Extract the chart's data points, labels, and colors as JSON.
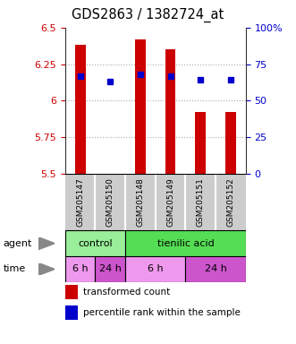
{
  "title": "GDS2863 / 1382724_at",
  "samples": [
    "GSM205147",
    "GSM205150",
    "GSM205148",
    "GSM205149",
    "GSM205151",
    "GSM205152"
  ],
  "bar_bottoms": [
    5.5,
    5.52,
    5.5,
    5.5,
    5.5,
    5.5
  ],
  "bar_tops": [
    6.38,
    5.52,
    6.42,
    6.35,
    5.92,
    5.92
  ],
  "percentile_values": [
    6.17,
    6.13,
    6.18,
    6.17,
    6.14,
    6.14
  ],
  "ylim": [
    5.5,
    6.5
  ],
  "yticks": [
    5.5,
    5.75,
    6.0,
    6.25,
    6.5
  ],
  "ytick_labels": [
    "5.5",
    "5.75",
    "6",
    "6.25",
    "6.5"
  ],
  "right_yticks": [
    0,
    25,
    50,
    75,
    100
  ],
  "right_ytick_labels": [
    "0",
    "25",
    "50",
    "75",
    "100%"
  ],
  "bar_color": "#cc0000",
  "dot_color": "#0000cc",
  "agent_groups": [
    {
      "label": "control",
      "start": 0,
      "end": 2,
      "color": "#99ee99"
    },
    {
      "label": "tienilic acid",
      "start": 2,
      "end": 6,
      "color": "#55dd55"
    }
  ],
  "time_groups": [
    {
      "label": "6 h",
      "start": 0,
      "end": 1,
      "color": "#ee99ee"
    },
    {
      "label": "24 h",
      "start": 1,
      "end": 2,
      "color": "#cc55cc"
    },
    {
      "label": "6 h",
      "start": 2,
      "end": 4,
      "color": "#ee99ee"
    },
    {
      "label": "24 h",
      "start": 4,
      "end": 6,
      "color": "#cc55cc"
    }
  ],
  "legend_red_label": "transformed count",
  "legend_blue_label": "percentile rank within the sample",
  "bar_width": 0.35,
  "grid_color": "#aaaaaa",
  "tick_label_color_left": "#cc0000",
  "tick_label_color_right": "#0000cc",
  "sample_bg_color": "#cccccc",
  "sample_border_color": "#ffffff"
}
